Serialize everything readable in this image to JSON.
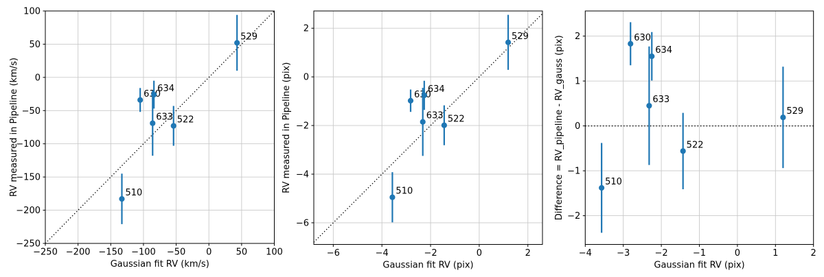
{
  "figure": {
    "background": "#ffffff",
    "accent": "#1f77b4",
    "grid_color": "#c9c9c9",
    "ref_line_color": "#000000",
    "spine_color": "#000000",
    "text_color": "#000000"
  },
  "chart_data": [
    {
      "type": "scatter",
      "title": "",
      "xlabel": "Gaussian fit RV (km/s)",
      "ylabel": "RV measured in Pipeline (km/s)",
      "xlim": [
        -250,
        100
      ],
      "ylim": [
        -250,
        100
      ],
      "xticks": [
        -250,
        -200,
        -150,
        -100,
        -50,
        0,
        50,
        100
      ],
      "yticks": [
        -250,
        -200,
        -150,
        -100,
        -50,
        0,
        50,
        100
      ],
      "grid": true,
      "identity_line": true,
      "zero_line": false,
      "legend": "none",
      "points": [
        {
          "label": "510",
          "x": -133,
          "y": -183,
          "yerr": 38
        },
        {
          "label": "522",
          "x": -54,
          "y": -73,
          "yerr": 30
        },
        {
          "label": "529",
          "x": 43,
          "y": 52,
          "yerr": 42
        },
        {
          "label": "630",
          "x": -105,
          "y": -34,
          "yerr": 18
        },
        {
          "label": "633",
          "x": -86,
          "y": -69,
          "yerr": 49
        },
        {
          "label": "634",
          "x": -84,
          "y": -26,
          "yerr": 21
        }
      ]
    },
    {
      "type": "scatter",
      "title": "",
      "xlabel": "Gaussian fit RV (pix)",
      "ylabel": "RV measured in Pipeline (pix)",
      "xlim": [
        -6.8,
        2.6
      ],
      "ylim": [
        -6.89,
        2.71
      ],
      "xticks": [
        -6,
        -4,
        -2,
        0,
        2
      ],
      "yticks": [
        -6,
        -4,
        -2,
        0,
        2
      ],
      "grid": true,
      "identity_line": true,
      "zero_line": false,
      "legend": "none",
      "points": [
        {
          "label": "510",
          "x": -3.57,
          "y": -4.95,
          "yerr": 1.03
        },
        {
          "label": "522",
          "x": -1.44,
          "y": -1.99,
          "yerr": 0.82
        },
        {
          "label": "529",
          "x": 1.19,
          "y": 1.42,
          "yerr": 1.13
        },
        {
          "label": "630",
          "x": -2.82,
          "y": -0.98,
          "yerr": 0.46
        },
        {
          "label": "633",
          "x": -2.32,
          "y": -1.85,
          "yerr": 1.4
        },
        {
          "label": "634",
          "x": -2.26,
          "y": -0.76,
          "yerr": 0.6
        }
      ]
    },
    {
      "type": "scatter",
      "title": "",
      "xlabel": "Gaussian fit RV (pix)",
      "ylabel": "Difference = RV_pipeline - RV_gauss (pix)",
      "xlim": [
        -4,
        2
      ],
      "ylim": [
        -2.64,
        2.56
      ],
      "xticks": [
        -4,
        -3,
        -2,
        -1,
        0,
        1,
        2
      ],
      "yticks": [
        -2,
        -1,
        0,
        1,
        2
      ],
      "grid": true,
      "identity_line": false,
      "zero_line": true,
      "legend": "none",
      "points": [
        {
          "label": "510",
          "x": -3.57,
          "y": -1.38,
          "yerr": 1.0
        },
        {
          "label": "522",
          "x": -1.43,
          "y": -0.56,
          "yerr": 0.85
        },
        {
          "label": "529",
          "x": 1.2,
          "y": 0.19,
          "yerr": 1.13
        },
        {
          "label": "630",
          "x": -2.81,
          "y": 1.83,
          "yerr": 0.48
        },
        {
          "label": "633",
          "x": -2.32,
          "y": 0.45,
          "yerr": 1.32
        },
        {
          "label": "634",
          "x": -2.25,
          "y": 1.55,
          "yerr": 0.54
        }
      ]
    }
  ]
}
